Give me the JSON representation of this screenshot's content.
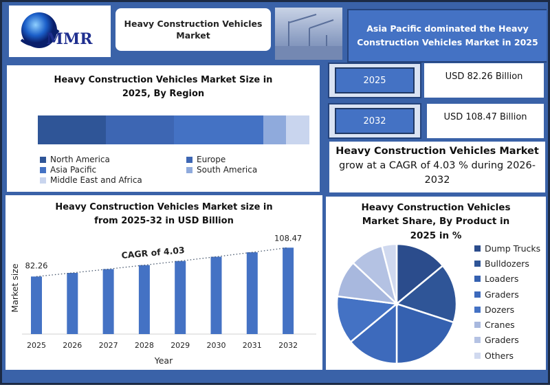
{
  "header": {
    "logo_text": "MMR",
    "title": "Heavy Construction Vehicles Market",
    "highlight": "Asia Pacific dominated the Heavy Construction Vehicles Market in 2025"
  },
  "stats": [
    {
      "year": "2025",
      "value": "USD 82.26 Billion"
    },
    {
      "year": "2032",
      "value": "USD 108.47 Billion"
    }
  ],
  "cagr_text": {
    "bold": "Heavy Construction Vehicles Market",
    "rest": "grow at a CAGR of 4.03 % during 2026-2032"
  },
  "colors": {
    "background": "#3a62a8",
    "accent": "#4472c4"
  },
  "chart_data": [
    {
      "type": "bar",
      "orientation": "horizontal-stacked",
      "title": "Heavy Construction Vehicles Market Size in 2025, By Region",
      "categories": [
        "North America",
        "Europe",
        "Asia Pacific",
        "South America",
        "Middle East and Africa"
      ],
      "values": [
        25,
        25,
        33,
        8.5,
        8.5
      ],
      "colors": [
        "#2f5597",
        "#3d66b3",
        "#4472c4",
        "#8faadc",
        "#c9d5ee"
      ],
      "legend": "bottom"
    },
    {
      "type": "bar",
      "title": "Heavy Construction Vehicles Market size in from 2025-32 in USD Billion",
      "categories": [
        "2025",
        "2026",
        "2027",
        "2028",
        "2029",
        "2030",
        "2031",
        "2032"
      ],
      "values": [
        82.26,
        85.57,
        89.02,
        92.61,
        96.34,
        100.22,
        104.26,
        108.47
      ],
      "data_labels": {
        "first": "82.26",
        "last": "108.47"
      },
      "annotation": "CAGR of 4.03",
      "xlabel": "Year",
      "ylabel": "Market size",
      "ylim": [
        30,
        115
      ],
      "grid": false,
      "trendline": "dotted"
    },
    {
      "type": "pie",
      "title": "Heavy Construction Vehicles Market Share, By Product in 2025 in %",
      "labels": [
        "Dump Trucks",
        "Bulldozers",
        "Loaders",
        "Graders",
        "Dozers",
        "Cranes",
        "Graders",
        "Others"
      ],
      "values": [
        14,
        16,
        20,
        14,
        13,
        10,
        9,
        4
      ],
      "colors": [
        "#2b4c8c",
        "#2f5597",
        "#3561b0",
        "#3d6abc",
        "#4472c4",
        "#a8b8de",
        "#b4c2e3",
        "#d0d9ef"
      ],
      "legend": "right"
    }
  ]
}
